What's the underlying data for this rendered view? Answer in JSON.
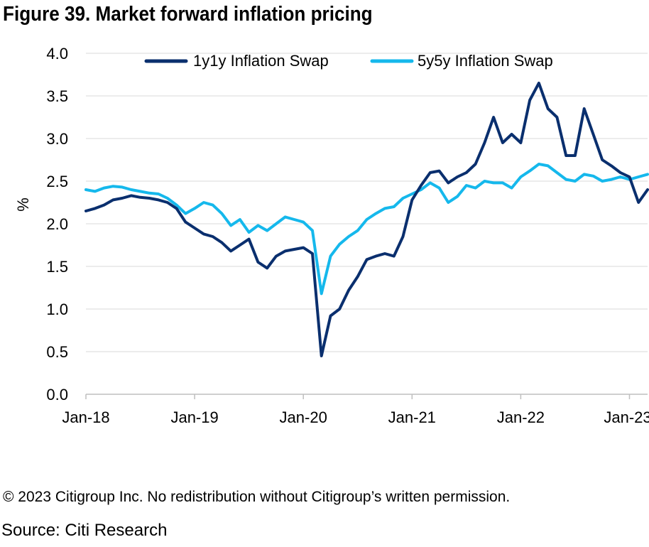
{
  "figure": {
    "title": "Figure 39. Market forward inflation pricing",
    "copyright": "© 2023 Citigroup Inc. No redistribution without Citigroup’s written permission.",
    "source": "Source: Citi Research"
  },
  "chart_data": {
    "type": "line",
    "title": "Figure 39. Market forward inflation pricing",
    "xlabel": "",
    "ylabel": "%",
    "ylim": [
      0.0,
      4.0
    ],
    "yticks": [
      "0.0",
      "0.5",
      "1.0",
      "1.5",
      "2.0",
      "2.5",
      "3.0",
      "3.5",
      "4.0"
    ],
    "xticks": [
      "Jan-18",
      "Jan-19",
      "Jan-20",
      "Jan-21",
      "Jan-22",
      "Jan-23"
    ],
    "xlim": [
      "2018-01",
      "2023-03"
    ],
    "grid": "horizontal",
    "legend": "top",
    "x": [
      "2018-01",
      "2018-02",
      "2018-03",
      "2018-04",
      "2018-05",
      "2018-06",
      "2018-07",
      "2018-08",
      "2018-09",
      "2018-10",
      "2018-11",
      "2018-12",
      "2019-01",
      "2019-02",
      "2019-03",
      "2019-04",
      "2019-05",
      "2019-06",
      "2019-07",
      "2019-08",
      "2019-09",
      "2019-10",
      "2019-11",
      "2019-12",
      "2020-01",
      "2020-02",
      "2020-03",
      "2020-04",
      "2020-05",
      "2020-06",
      "2020-07",
      "2020-08",
      "2020-09",
      "2020-10",
      "2020-11",
      "2020-12",
      "2021-01",
      "2021-02",
      "2021-03",
      "2021-04",
      "2021-05",
      "2021-06",
      "2021-07",
      "2021-08",
      "2021-09",
      "2021-10",
      "2021-11",
      "2021-12",
      "2022-01",
      "2022-02",
      "2022-03",
      "2022-04",
      "2022-05",
      "2022-06",
      "2022-07",
      "2022-08",
      "2022-09",
      "2022-10",
      "2022-11",
      "2022-12",
      "2023-01",
      "2023-02",
      "2023-03"
    ],
    "series": [
      {
        "name": "1y1y Inflation Swap",
        "color": "#0a2f6e",
        "values": [
          2.15,
          2.18,
          2.22,
          2.28,
          2.3,
          2.33,
          2.31,
          2.3,
          2.28,
          2.25,
          2.18,
          2.02,
          1.95,
          1.88,
          1.85,
          1.78,
          1.68,
          1.75,
          1.82,
          1.55,
          1.48,
          1.62,
          1.68,
          1.7,
          1.72,
          1.65,
          0.45,
          0.92,
          1.0,
          1.22,
          1.38,
          1.58,
          1.62,
          1.65,
          1.62,
          1.85,
          2.28,
          2.45,
          2.6,
          2.62,
          2.48,
          2.55,
          2.6,
          2.7,
          2.95,
          3.25,
          2.95,
          3.05,
          2.95,
          3.45,
          3.65,
          3.35,
          3.25,
          2.8,
          2.8,
          3.35,
          3.05,
          2.75,
          2.68,
          2.6,
          2.55,
          2.25,
          2.4
        ]
      },
      {
        "name": "5y5y Inflation Swap",
        "color": "#15b8ec",
        "values": [
          2.4,
          2.38,
          2.42,
          2.44,
          2.43,
          2.4,
          2.38,
          2.36,
          2.35,
          2.3,
          2.22,
          2.12,
          2.18,
          2.25,
          2.22,
          2.12,
          1.98,
          2.05,
          1.9,
          1.98,
          1.92,
          2.0,
          2.08,
          2.05,
          2.02,
          1.92,
          1.18,
          1.62,
          1.76,
          1.85,
          1.92,
          2.05,
          2.12,
          2.18,
          2.2,
          2.3,
          2.35,
          2.4,
          2.48,
          2.42,
          2.25,
          2.32,
          2.45,
          2.42,
          2.5,
          2.48,
          2.48,
          2.42,
          2.55,
          2.62,
          2.7,
          2.68,
          2.6,
          2.52,
          2.5,
          2.58,
          2.56,
          2.5,
          2.52,
          2.55,
          2.52,
          2.55,
          2.58
        ]
      }
    ]
  }
}
